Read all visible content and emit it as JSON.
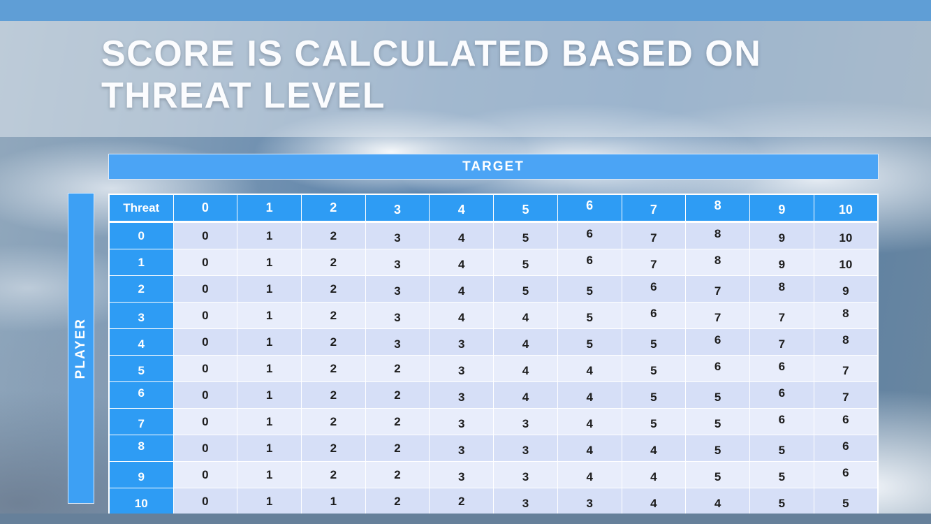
{
  "slide": {
    "title_line1": "SCORE IS CALCULATED BASED ON",
    "title_line2": "THREAT LEVEL"
  },
  "matrix": {
    "target_label": "TARGET",
    "player_label": "PLAYER",
    "corner_label": "Threat",
    "column_headers": [
      "0",
      "1",
      "2",
      "3",
      "4",
      "5",
      "6",
      "7",
      "8",
      "9",
      "10"
    ],
    "rows": [
      {
        "threat": "0",
        "scores": [
          "0",
          "1",
          "2",
          "3",
          "4",
          "5",
          "6",
          "7",
          "8",
          "9",
          "10"
        ]
      },
      {
        "threat": "1",
        "scores": [
          "0",
          "1",
          "2",
          "3",
          "4",
          "5",
          "6",
          "7",
          "8",
          "9",
          "10"
        ]
      },
      {
        "threat": "2",
        "scores": [
          "0",
          "1",
          "2",
          "3",
          "4",
          "5",
          "5",
          "6",
          "7",
          "8",
          "9"
        ]
      },
      {
        "threat": "3",
        "scores": [
          "0",
          "1",
          "2",
          "3",
          "4",
          "4",
          "5",
          "6",
          "7",
          "7",
          "8"
        ]
      },
      {
        "threat": "4",
        "scores": [
          "0",
          "1",
          "2",
          "3",
          "3",
          "4",
          "5",
          "5",
          "6",
          "7",
          "8"
        ]
      },
      {
        "threat": "5",
        "scores": [
          "0",
          "1",
          "2",
          "2",
          "3",
          "4",
          "4",
          "5",
          "6",
          "6",
          "7"
        ]
      },
      {
        "threat": "6",
        "scores": [
          "0",
          "1",
          "2",
          "2",
          "3",
          "4",
          "4",
          "5",
          "5",
          "6",
          "7"
        ]
      },
      {
        "threat": "7",
        "scores": [
          "0",
          "1",
          "2",
          "2",
          "3",
          "3",
          "4",
          "5",
          "5",
          "6",
          "6"
        ]
      },
      {
        "threat": "8",
        "scores": [
          "0",
          "1",
          "2",
          "2",
          "3",
          "3",
          "4",
          "4",
          "5",
          "5",
          "6"
        ]
      },
      {
        "threat": "9",
        "scores": [
          "0",
          "1",
          "2",
          "2",
          "3",
          "3",
          "4",
          "4",
          "5",
          "5",
          "6"
        ]
      },
      {
        "threat": "10",
        "scores": [
          "0",
          "1",
          "1",
          "2",
          "2",
          "3",
          "3",
          "4",
          "4",
          "5",
          "5"
        ]
      }
    ]
  },
  "colors": {
    "header_blue": "#2e9cf4",
    "target_bar_blue": "#4ba4f5",
    "player_bar_blue": "#3da0f4",
    "row_even": "#d6dff7",
    "row_odd": "#e8edfb",
    "top_bar": "#5f9ed6",
    "bottom_bar": "#66809a"
  }
}
